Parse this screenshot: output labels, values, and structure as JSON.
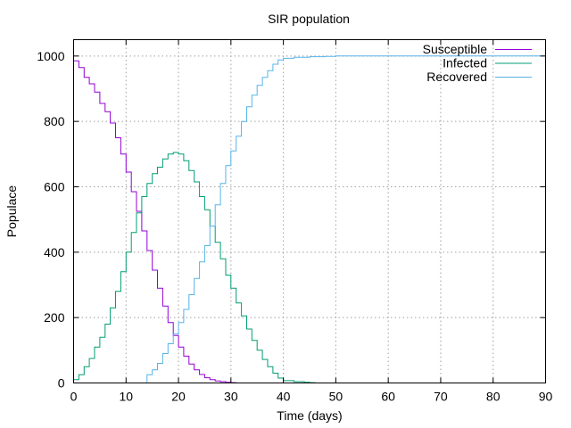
{
  "chart_data": {
    "type": "line",
    "title": "SIR population",
    "xlabel": "Time (days)",
    "ylabel": "Populace",
    "xlim": [
      0,
      90
    ],
    "ylim": [
      0,
      1050
    ],
    "xticks": [
      0,
      10,
      20,
      30,
      40,
      50,
      60,
      70,
      80,
      90
    ],
    "yticks": [
      0,
      200,
      400,
      600,
      800,
      1000
    ],
    "grid": true,
    "legend_position": "top-right",
    "series": [
      {
        "name": "Susceptible",
        "color": "#9400d3",
        "points": [
          [
            0,
            985
          ],
          [
            1,
            965
          ],
          [
            2,
            935
          ],
          [
            3,
            915
          ],
          [
            4,
            890
          ],
          [
            5,
            855
          ],
          [
            6,
            830
          ],
          [
            7,
            795
          ],
          [
            8,
            750
          ],
          [
            9,
            700
          ],
          [
            10,
            645
          ],
          [
            11,
            585
          ],
          [
            12,
            525
          ],
          [
            13,
            465
          ],
          [
            14,
            405
          ],
          [
            15,
            345
          ],
          [
            16,
            290
          ],
          [
            17,
            235
          ],
          [
            18,
            185
          ],
          [
            19,
            145
          ],
          [
            20,
            110
          ],
          [
            21,
            82
          ],
          [
            22,
            58
          ],
          [
            23,
            40
          ],
          [
            24,
            26
          ],
          [
            25,
            16
          ],
          [
            26,
            10
          ],
          [
            27,
            6
          ],
          [
            28,
            4
          ],
          [
            29,
            2
          ],
          [
            30,
            1
          ],
          [
            31,
            0
          ],
          [
            35,
            0
          ]
        ]
      },
      {
        "name": "Infected",
        "color": "#009e73",
        "points": [
          [
            0,
            10
          ],
          [
            1,
            25
          ],
          [
            2,
            50
          ],
          [
            3,
            75
          ],
          [
            4,
            110
          ],
          [
            5,
            140
          ],
          [
            6,
            180
          ],
          [
            7,
            230
          ],
          [
            8,
            280
          ],
          [
            9,
            340
          ],
          [
            10,
            400
          ],
          [
            11,
            460
          ],
          [
            12,
            520
          ],
          [
            13,
            570
          ],
          [
            14,
            610
          ],
          [
            15,
            640
          ],
          [
            16,
            660
          ],
          [
            17,
            685
          ],
          [
            18,
            700
          ],
          [
            19,
            705
          ],
          [
            20,
            700
          ],
          [
            21,
            680
          ],
          [
            22,
            650
          ],
          [
            23,
            615
          ],
          [
            24,
            570
          ],
          [
            25,
            530
          ],
          [
            26,
            480
          ],
          [
            27,
            430
          ],
          [
            28,
            380
          ],
          [
            29,
            330
          ],
          [
            30,
            290
          ],
          [
            31,
            245
          ],
          [
            32,
            205
          ],
          [
            33,
            165
          ],
          [
            34,
            130
          ],
          [
            35,
            100
          ],
          [
            36,
            72
          ],
          [
            37,
            50
          ],
          [
            38,
            30
          ],
          [
            39,
            15
          ],
          [
            40,
            7
          ],
          [
            42,
            4
          ],
          [
            44,
            2
          ],
          [
            45,
            1
          ],
          [
            46,
            0
          ]
        ]
      },
      {
        "name": "Recovered",
        "color": "#56b4e9",
        "points": [
          [
            13.5,
            0
          ],
          [
            14,
            25
          ],
          [
            15,
            40
          ],
          [
            16,
            60
          ],
          [
            17,
            90
          ],
          [
            18,
            120
          ],
          [
            19,
            150
          ],
          [
            20,
            185
          ],
          [
            21,
            225
          ],
          [
            22,
            270
          ],
          [
            23,
            320
          ],
          [
            24,
            370
          ],
          [
            25,
            420
          ],
          [
            26,
            480
          ],
          [
            27,
            545
          ],
          [
            28,
            610
          ],
          [
            29,
            665
          ],
          [
            30,
            710
          ],
          [
            31,
            755
          ],
          [
            32,
            800
          ],
          [
            33,
            845
          ],
          [
            34,
            880
          ],
          [
            35,
            910
          ],
          [
            36,
            935
          ],
          [
            37,
            955
          ],
          [
            38,
            975
          ],
          [
            39,
            988
          ],
          [
            40,
            993
          ],
          [
            42,
            996
          ],
          [
            45,
            998
          ],
          [
            48,
            999
          ],
          [
            50,
            1000
          ],
          [
            90,
            1000
          ]
        ]
      }
    ]
  }
}
